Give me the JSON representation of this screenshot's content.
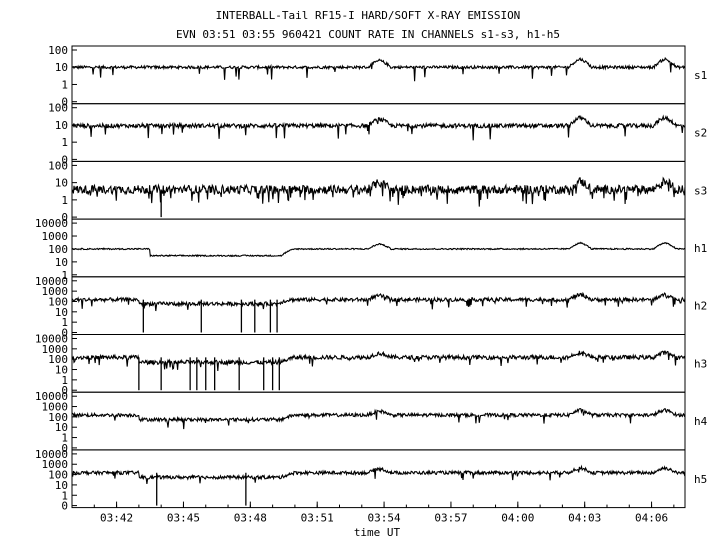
{
  "chart_data": {
    "type": "line",
    "title": "INTERBALL-Tail RF15-I HARD/SOFT X-RAY EMISSION",
    "subtitle": "EVN 03:51 03:55 960421  COUNT RATE IN CHANNELS s1-s3, h1-h5",
    "xlabel": "time UT",
    "x_range_minutes": [
      40.0,
      67.5
    ],
    "x_ticks": [
      {
        "minutes": 42,
        "label": "03:42"
      },
      {
        "minutes": 45,
        "label": "03:45"
      },
      {
        "minutes": 48,
        "label": "03:48"
      },
      {
        "minutes": 51,
        "label": "03:51"
      },
      {
        "minutes": 54,
        "label": "03:54"
      },
      {
        "minutes": 57,
        "label": "03:57"
      },
      {
        "minutes": 60,
        "label": "04:00"
      },
      {
        "minutes": 63,
        "label": "04:03"
      },
      {
        "minutes": 66,
        "label": "04:06"
      }
    ],
    "y_scale": "log",
    "panels": [
      {
        "name": "s1",
        "yticks": [
          "100",
          "10",
          "1",
          "0"
        ],
        "ydecades": 2,
        "base": 10,
        "noise": 0.08,
        "spikes": 0.02,
        "drop": [],
        "lowband": null
      },
      {
        "name": "s2",
        "yticks": [
          "100",
          "10",
          "1",
          "0"
        ],
        "ydecades": 2,
        "base": 9,
        "noise": 0.12,
        "spikes": 0.03,
        "drop": [],
        "lowband": null
      },
      {
        "name": "s3",
        "yticks": [
          "100",
          "10",
          "1",
          "0"
        ],
        "ydecades": 2,
        "base": 4,
        "noise": 0.25,
        "spikes": 0.06,
        "drop": [
          44.0
        ],
        "lowband": null
      },
      {
        "name": "h1",
        "yticks": [
          "10000",
          "1000",
          "100",
          "10",
          "1"
        ],
        "ydecades": 4,
        "base": 100,
        "noise": 0.05,
        "spikes": 0.0,
        "drop": [],
        "lowband": [
          43.5,
          50.0,
          30
        ]
      },
      {
        "name": "h2",
        "yticks": [
          "10000",
          "1000",
          "100",
          "10",
          "1",
          "0"
        ],
        "ydecades": 4,
        "base": 150,
        "noise": 0.18,
        "spikes": 0.03,
        "drop": [
          43.2,
          45.8,
          47.6,
          48.2,
          48.9,
          49.2
        ],
        "lowband": [
          43.0,
          49.8,
          60
        ]
      },
      {
        "name": "h3",
        "yticks": [
          "10000",
          "1000",
          "100",
          "10",
          "1",
          "0"
        ],
        "ydecades": 4,
        "base": 150,
        "noise": 0.2,
        "spikes": 0.04,
        "drop": [
          43.0,
          44.0,
          45.3,
          45.6,
          46.0,
          46.4,
          47.5,
          48.6,
          49.0,
          49.3
        ],
        "lowband": [
          43.0,
          50.0,
          50
        ]
      },
      {
        "name": "h4",
        "yticks": [
          "10000",
          "1000",
          "100",
          "10",
          "1",
          "0"
        ],
        "ydecades": 4,
        "base": 150,
        "noise": 0.16,
        "spikes": 0.02,
        "drop": [],
        "lowband": [
          43.0,
          50.0,
          55
        ]
      },
      {
        "name": "h5",
        "yticks": [
          "10000",
          "1000",
          "100",
          "10",
          "1",
          "0"
        ],
        "ydecades": 4,
        "base": 150,
        "noise": 0.16,
        "spikes": 0.02,
        "drop": [
          43.8,
          47.8
        ],
        "lowband": [
          43.0,
          50.0,
          55
        ]
      }
    ],
    "events": [
      {
        "minutes": 53.8,
        "factor": 2.5
      },
      {
        "minutes": 62.8,
        "factor": 3.0
      },
      {
        "minutes": 66.6,
        "factor": 3.0
      }
    ],
    "grid": false,
    "legend": "none"
  }
}
